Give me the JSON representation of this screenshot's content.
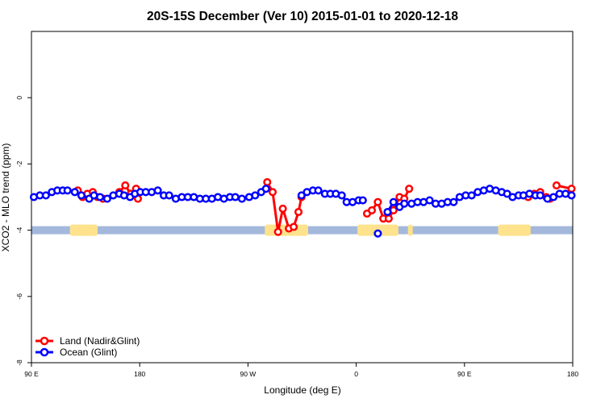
{
  "chart_data": {
    "type": "line",
    "title": "20S-15S December (Ver 10)   2015-01-01 to 2020-12-18",
    "xlabel": "Longitude (deg E)",
    "ylabel": "XCO2 - MLO trend (ppm)",
    "xlim": [
      90,
      540
    ],
    "ylim": [
      -8,
      2
    ],
    "x_ticks": [
      {
        "value": 90,
        "label": "90 E"
      },
      {
        "value": 180,
        "label": "180"
      },
      {
        "value": 270,
        "label": "90 W"
      },
      {
        "value": 360,
        "label": "0"
      },
      {
        "value": 450,
        "label": "90 E"
      },
      {
        "value": 540,
        "label": "180"
      }
    ],
    "y_ticks": [
      {
        "value": 0,
        "label": "0"
      },
      {
        "value": -2,
        "label": "-2"
      },
      {
        "value": -4,
        "label": "-4"
      },
      {
        "value": -6,
        "label": "-6"
      },
      {
        "value": -8,
        "label": "-8"
      }
    ],
    "legend_position": "bottom-left",
    "series": [
      {
        "name": "Land (Nadir&Glint)",
        "color": "#ff0000",
        "segments": [
          [
            [
              128.5,
              -2.8
            ],
            [
              132.5,
              -3.0
            ],
            [
              136.5,
              -2.9
            ],
            [
              141,
              -2.85
            ],
            [
              145,
              -3.0
            ],
            [
              149.5,
              -3.05
            ],
            [
              163,
              -2.85
            ],
            [
              168,
              -2.65
            ],
            [
              172.5,
              -2.9
            ],
            [
              177,
              -2.75
            ],
            [
              178.5,
              -3.05
            ]
          ],
          [
            [
              286,
              -2.55
            ],
            [
              290.5,
              -2.85
            ],
            [
              295,
              -4.05
            ],
            [
              299,
              -3.35
            ],
            [
              304,
              -3.95
            ],
            [
              308,
              -3.9
            ],
            [
              312,
              -3.45
            ],
            [
              314.5,
              -3.0
            ]
          ],
          [
            [
              369,
              -3.5
            ],
            [
              373,
              -3.4
            ],
            [
              378,
              -3.15
            ],
            [
              382.5,
              -3.65
            ],
            [
              387,
              -3.65
            ],
            [
              391,
              -3.4
            ],
            [
              396,
              -3.0
            ],
            [
              400,
              -3.05
            ],
            [
              404,
              -2.75
            ]
          ],
          [
            [
              503,
              -3.0
            ],
            [
              508,
              -2.9
            ],
            [
              513,
              -2.85
            ],
            [
              518,
              -3.0
            ],
            [
              521,
              -3.05
            ]
          ],
          [
            [
              526.5,
              -2.65
            ],
            [
              539,
              -2.75
            ]
          ]
        ]
      },
      {
        "name": "Ocean (Glint)",
        "color": "#0000ff",
        "segments": [
          [
            [
              92,
              -3.0
            ],
            [
              97,
              -2.95
            ],
            [
              102,
              -2.95
            ],
            [
              107,
              -2.85
            ],
            [
              111.5,
              -2.8
            ],
            [
              116,
              -2.8
            ],
            [
              120,
              -2.8
            ],
            [
              126,
              -2.85
            ],
            [
              131.5,
              -2.95
            ],
            [
              138,
              -3.05
            ],
            [
              142,
              -2.95
            ],
            [
              147,
              -3.0
            ],
            [
              153,
              -3.05
            ],
            [
              158,
              -2.95
            ],
            [
              163,
              -2.9
            ],
            [
              167,
              -2.95
            ],
            [
              172,
              -3.0
            ],
            [
              176,
              -2.9
            ],
            [
              180.5,
              -2.85
            ],
            [
              185,
              -2.85
            ],
            [
              190,
              -2.85
            ],
            [
              195,
              -2.8
            ],
            [
              200,
              -2.95
            ],
            [
              204.5,
              -2.95
            ],
            [
              210,
              -3.05
            ],
            [
              215,
              -3.0
            ],
            [
              220,
              -3.0
            ],
            [
              225,
              -3.0
            ],
            [
              230,
              -3.05
            ],
            [
              235,
              -3.05
            ],
            [
              240,
              -3.05
            ],
            [
              245,
              -3.0
            ],
            [
              250,
              -3.05
            ],
            [
              255,
              -3.0
            ],
            [
              259.5,
              -3.0
            ],
            [
              265,
              -3.05
            ],
            [
              271,
              -3.0
            ],
            [
              276,
              -2.95
            ],
            [
              281,
              -2.85
            ],
            [
              285,
              -2.75
            ]
          ],
          [
            [
              314.5,
              -2.95
            ],
            [
              319,
              -2.85
            ],
            [
              324,
              -2.8
            ],
            [
              328.5,
              -2.8
            ],
            [
              334,
              -2.9
            ],
            [
              338.5,
              -2.9
            ],
            [
              343,
              -2.9
            ],
            [
              348,
              -2.95
            ],
            [
              352,
              -3.15
            ],
            [
              357,
              -3.15
            ],
            [
              362,
              -3.1
            ],
            [
              365.5,
              -3.1
            ]
          ],
          [
            [
              378,
              -4.1
            ]
          ],
          [
            [
              386,
              -3.45
            ],
            [
              391,
              -3.15
            ],
            [
              396,
              -3.3
            ],
            [
              400,
              -3.2
            ],
            [
              406,
              -3.2
            ],
            [
              411,
              -3.15
            ],
            [
              416,
              -3.15
            ],
            [
              421,
              -3.1
            ],
            [
              426,
              -3.2
            ],
            [
              431,
              -3.2
            ],
            [
              436,
              -3.15
            ],
            [
              441,
              -3.15
            ],
            [
              446,
              -3.0
            ],
            [
              451,
              -2.95
            ],
            [
              456,
              -2.95
            ],
            [
              461,
              -2.85
            ],
            [
              466,
              -2.8
            ],
            [
              471,
              -2.75
            ],
            [
              476,
              -2.8
            ],
            [
              481,
              -2.85
            ],
            [
              485.5,
              -2.9
            ],
            [
              490,
              -3.0
            ],
            [
              495,
              -2.95
            ],
            [
              499,
              -2.95
            ],
            [
              504,
              -2.9
            ],
            [
              509,
              -2.95
            ],
            [
              513,
              -2.95
            ],
            [
              519,
              -3.05
            ],
            [
              524,
              -3.0
            ],
            [
              529,
              -2.9
            ],
            [
              534,
              -2.9
            ],
            [
              539,
              -2.95
            ]
          ]
        ]
      }
    ],
    "background_band": {
      "y": -4.0,
      "ocean_color": "#a4b8dc",
      "land_color": "#ffe28c",
      "land_ranges": [
        [
          122,
          145
        ],
        [
          284,
          320
        ],
        [
          361,
          395
        ],
        [
          403,
          407
        ],
        [
          478,
          505
        ]
      ]
    }
  }
}
